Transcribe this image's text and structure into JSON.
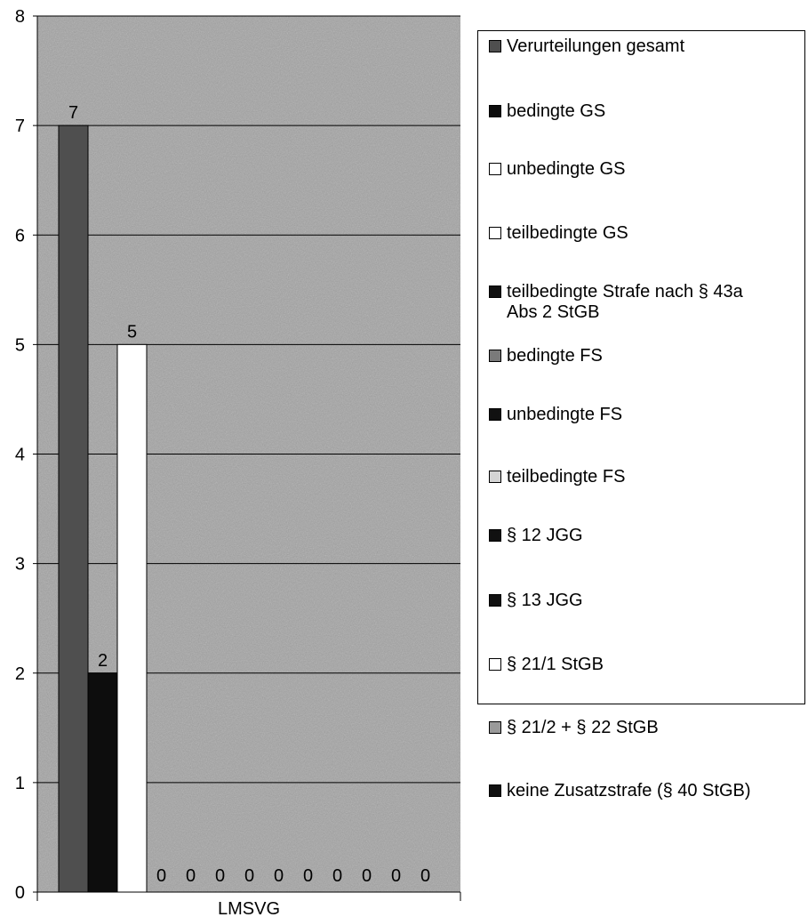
{
  "chart_data": {
    "type": "bar",
    "categories": [
      "LMSVG"
    ],
    "ylim": [
      0,
      8
    ],
    "yticks": [
      0,
      1,
      2,
      3,
      4,
      5,
      6,
      7,
      8
    ],
    "grid": true,
    "legend_position": "right",
    "series": [
      {
        "name": "Verurteilungen gesamt",
        "values": [
          7
        ],
        "color": "#4f4f4f",
        "value_label": "7"
      },
      {
        "name": "bedingte GS",
        "values": [
          2
        ],
        "color": "#0d0d0d",
        "value_label": "2"
      },
      {
        "name": "unbedingte GS",
        "values": [
          5
        ],
        "color": "#ffffff",
        "value_label": "5"
      },
      {
        "name": "teilbedingte GS",
        "values": [
          0
        ],
        "color": "#ffffff",
        "value_label": "0"
      },
      {
        "name": "teilbedingte Strafe nach § 43a\nAbs 2 StGB",
        "values": [
          0
        ],
        "color": "#111111",
        "value_label": "0"
      },
      {
        "name": "bedingte FS",
        "values": [
          0
        ],
        "color": "#7a7a7a",
        "value_label": "0"
      },
      {
        "name": "unbedingte FS",
        "values": [
          0
        ],
        "color": "#111111",
        "value_label": "0"
      },
      {
        "name": "teilbedingte FS",
        "values": [
          0
        ],
        "color": "#d4d4d4",
        "value_label": "0"
      },
      {
        "name": "§ 12 JGG",
        "values": [
          0
        ],
        "color": "#111111",
        "value_label": "0"
      },
      {
        "name": "§ 13 JGG",
        "values": [
          0
        ],
        "color": "#111111",
        "value_label": "0"
      },
      {
        "name": "§ 21/1 StGB",
        "values": [
          0
        ],
        "color": "#ffffff",
        "value_label": "0"
      },
      {
        "name": "§ 21/2 + § 22 StGB",
        "values": [
          0
        ],
        "color": "#9a9a9a",
        "value_label": "0"
      },
      {
        "name": "keine Zusatzstrafe (§ 40 StGB)",
        "values": [
          0
        ],
        "color": "#111111",
        "value_label": "0"
      }
    ]
  }
}
